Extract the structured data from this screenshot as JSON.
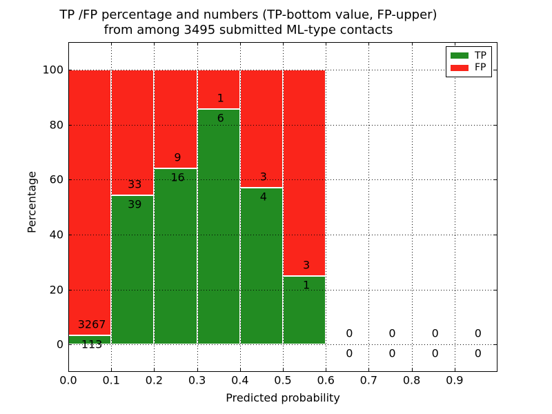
{
  "title": {
    "line1": "TP /FP percentage and numbers (TP-bottom value, FP-upper)",
    "line2": "from among 3495 submitted ML-type contacts"
  },
  "axes": {
    "xlabel": "Predicted probability",
    "ylabel": "Percentage",
    "x_tick_labels": [
      "0.0",
      "0.1",
      "0.2",
      "0.3",
      "0.4",
      "0.5",
      "0.6",
      "0.7",
      "0.8",
      "0.9"
    ],
    "x_tick_values": [
      0.0,
      0.1,
      0.2,
      0.3,
      0.4,
      0.5,
      0.6,
      0.7,
      0.8,
      0.9
    ],
    "y_tick_labels": [
      "0",
      "20",
      "40",
      "60",
      "80",
      "100"
    ],
    "y_tick_values": [
      0,
      20,
      40,
      60,
      80,
      100
    ],
    "x_grid_values": [
      0.1,
      0.2,
      0.3,
      0.4,
      0.5,
      0.6,
      0.7,
      0.8,
      0.9
    ]
  },
  "legend": {
    "items": [
      {
        "label": "TP",
        "color": "#228b22"
      },
      {
        "label": "FP",
        "color": "#fa251b"
      }
    ]
  },
  "colors": {
    "tp": "#228b22",
    "fp": "#fa251b",
    "background": "#ffffff",
    "frame": "#000000",
    "text": "#000000"
  },
  "chart_data": {
    "type": "bar",
    "stacked": true,
    "title": "TP /FP percentage and numbers (TP-bottom value, FP-upper) from among 3495 submitted ML-type contacts",
    "xlabel": "Predicted probability",
    "ylabel": "Percentage",
    "total_contacts": 3495,
    "bin_edges": [
      0.0,
      0.1,
      0.2,
      0.3,
      0.4,
      0.5,
      0.6,
      0.7,
      0.8,
      0.9,
      1.0
    ],
    "series": [
      {
        "name": "TP",
        "color": "#228b22",
        "counts": [
          113,
          39,
          16,
          6,
          4,
          1,
          0,
          0,
          0,
          0
        ]
      },
      {
        "name": "FP",
        "color": "#fa251b",
        "counts": [
          3267,
          33,
          9,
          1,
          3,
          3,
          0,
          0,
          0,
          0
        ]
      }
    ],
    "tp_percent": [
      3.34,
      54.17,
      64.0,
      85.71,
      57.14,
      25.0,
      0,
      0,
      0,
      0
    ],
    "xlim": [
      0.0,
      1.0
    ],
    "ylim": [
      -10,
      110
    ],
    "grid": "dotted",
    "legend_position": "upper right"
  }
}
